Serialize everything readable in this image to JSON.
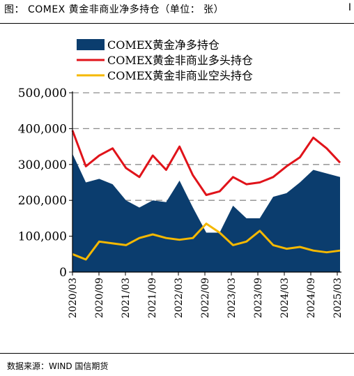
{
  "header": {
    "title": "图： COMEX 黄金非商业净多持仓（单位： 张）",
    "corner_mark": "I"
  },
  "footer": {
    "source": "数据来源：WIND 国信期货"
  },
  "chart_data": {
    "type": "area",
    "title": "",
    "xlabel": "",
    "ylabel": "",
    "ylim": [
      0,
      500000
    ],
    "yticks": [
      "0",
      "100,000",
      "200,000",
      "300,000",
      "400,000",
      "500,000"
    ],
    "xticks": [
      "2020/03",
      "2020/09",
      "2021/03",
      "2021/09",
      "2022/03",
      "2022/09",
      "2023/03",
      "2023/09",
      "2024/03",
      "2024/09",
      "2025/03"
    ],
    "grid": "horizontal dashed",
    "legend": "top-left",
    "x": [
      "2020/03",
      "2020/06",
      "2020/09",
      "2020/12",
      "2021/03",
      "2021/06",
      "2021/09",
      "2021/12",
      "2022/03",
      "2022/06",
      "2022/09",
      "2022/12",
      "2023/03",
      "2023/06",
      "2023/09",
      "2023/12",
      "2024/03",
      "2024/06",
      "2024/09",
      "2024/12",
      "2025/03"
    ],
    "series": [
      {
        "name": "COMEX黄金净多持仓",
        "type": "area",
        "color": "#0b3d6e",
        "values": [
          330000,
          250000,
          260000,
          245000,
          200000,
          180000,
          200000,
          195000,
          255000,
          180000,
          110000,
          110000,
          185000,
          150000,
          150000,
          210000,
          220000,
          250000,
          285000,
          275000,
          265000
        ]
      },
      {
        "name": "COMEX黄金非商业多头持仓",
        "type": "line",
        "color": "#e0131a",
        "values": [
          395000,
          295000,
          325000,
          345000,
          290000,
          265000,
          325000,
          285000,
          350000,
          270000,
          215000,
          225000,
          265000,
          245000,
          250000,
          265000,
          295000,
          320000,
          375000,
          345000,
          305000
        ]
      },
      {
        "name": "COMEX黄金非商业空头持仓",
        "type": "line",
        "color": "#f5b800",
        "values": [
          50000,
          35000,
          85000,
          80000,
          75000,
          95000,
          105000,
          95000,
          90000,
          95000,
          135000,
          110000,
          75000,
          85000,
          115000,
          75000,
          65000,
          70000,
          60000,
          55000,
          60000
        ]
      }
    ]
  }
}
